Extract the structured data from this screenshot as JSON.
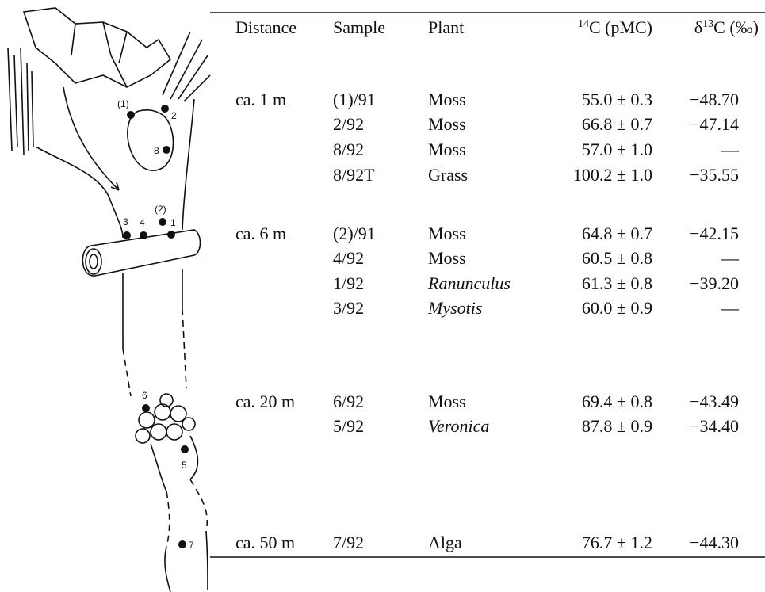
{
  "diagram": {
    "labels": [
      "(1)",
      "2",
      "8",
      "3",
      "4",
      "(2)",
      "1",
      "6",
      "5",
      "7"
    ]
  },
  "table": {
    "headers": {
      "distance": "Distance",
      "sample": "Sample",
      "plant": "Plant",
      "c14": {
        "sup": "14",
        "text": "C (pMC)"
      },
      "d13c": {
        "pre": "δ",
        "sup": "13",
        "text": "C (‰)"
      }
    },
    "italic_plants": [
      "Ranunculus",
      "Mysotis",
      "Veronica"
    ],
    "groups": [
      {
        "distance": "ca. 1 m",
        "rows": [
          {
            "sample": "(1)/91",
            "plant": "Moss",
            "c14": "55.0 ± 0.3",
            "d13c": "−48.70"
          },
          {
            "sample": "2/92",
            "plant": "Moss",
            "c14": "66.8 ± 0.7",
            "d13c": "−47.14"
          },
          {
            "sample": "8/92",
            "plant": "Moss",
            "c14": "57.0 ± 1.0",
            "d13c": "—"
          },
          {
            "sample": "8/92T",
            "plant": "Grass",
            "c14": "100.2 ± 1.0",
            "d13c": "−35.55"
          }
        ]
      },
      {
        "distance": "ca. 6 m",
        "rows": [
          {
            "sample": "(2)/91",
            "plant": "Moss",
            "c14": "64.8 ± 0.7",
            "d13c": "−42.15"
          },
          {
            "sample": "4/92",
            "plant": "Moss",
            "c14": "60.5 ± 0.8",
            "d13c": "—"
          },
          {
            "sample": "1/92",
            "plant": "Ranunculus",
            "c14": "61.3 ± 0.8",
            "d13c": "−39.20"
          },
          {
            "sample": "3/92",
            "plant": "Mysotis",
            "c14": "60.0 ± 0.9",
            "d13c": "—"
          }
        ]
      },
      {
        "distance": "ca. 20 m",
        "rows": [
          {
            "sample": "6/92",
            "plant": "Moss",
            "c14": "69.4 ± 0.8",
            "d13c": "−43.49"
          },
          {
            "sample": "5/92",
            "plant": "Veronica",
            "c14": "87.8 ± 0.9",
            "d13c": "−34.40"
          }
        ]
      },
      {
        "distance": "ca. 50 m",
        "rows": [
          {
            "sample": "7/92",
            "plant": "Alga",
            "c14": "76.7 ± 1.2",
            "d13c": "−44.30"
          }
        ]
      }
    ]
  }
}
